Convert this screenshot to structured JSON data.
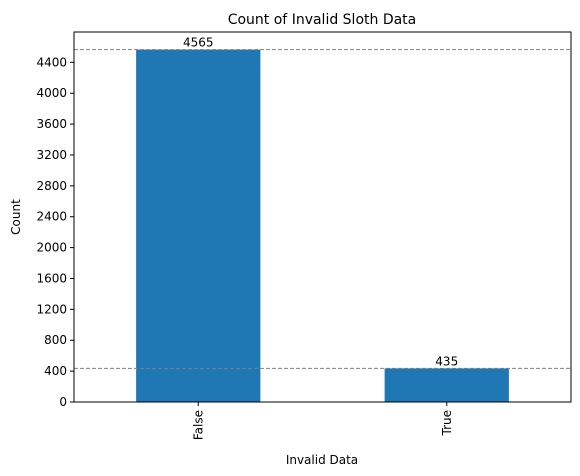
{
  "chart_data": {
    "type": "bar",
    "title": "Count of Invalid Sloth Data",
    "xlabel": "Invalid Data",
    "ylabel": "Count",
    "categories": [
      "False",
      "True"
    ],
    "values": [
      4565,
      435
    ],
    "data_labels": [
      "4565",
      "435"
    ],
    "ylim": [
      0,
      4793
    ],
    "yticks": [
      0,
      400,
      800,
      1200,
      1600,
      2000,
      2400,
      2800,
      3200,
      3600,
      4000,
      4400
    ],
    "reference_lines": [
      4565,
      435
    ],
    "bar_color": "#1f77b4",
    "reference_line_color": "#808080",
    "grid": false,
    "legend": "none"
  }
}
